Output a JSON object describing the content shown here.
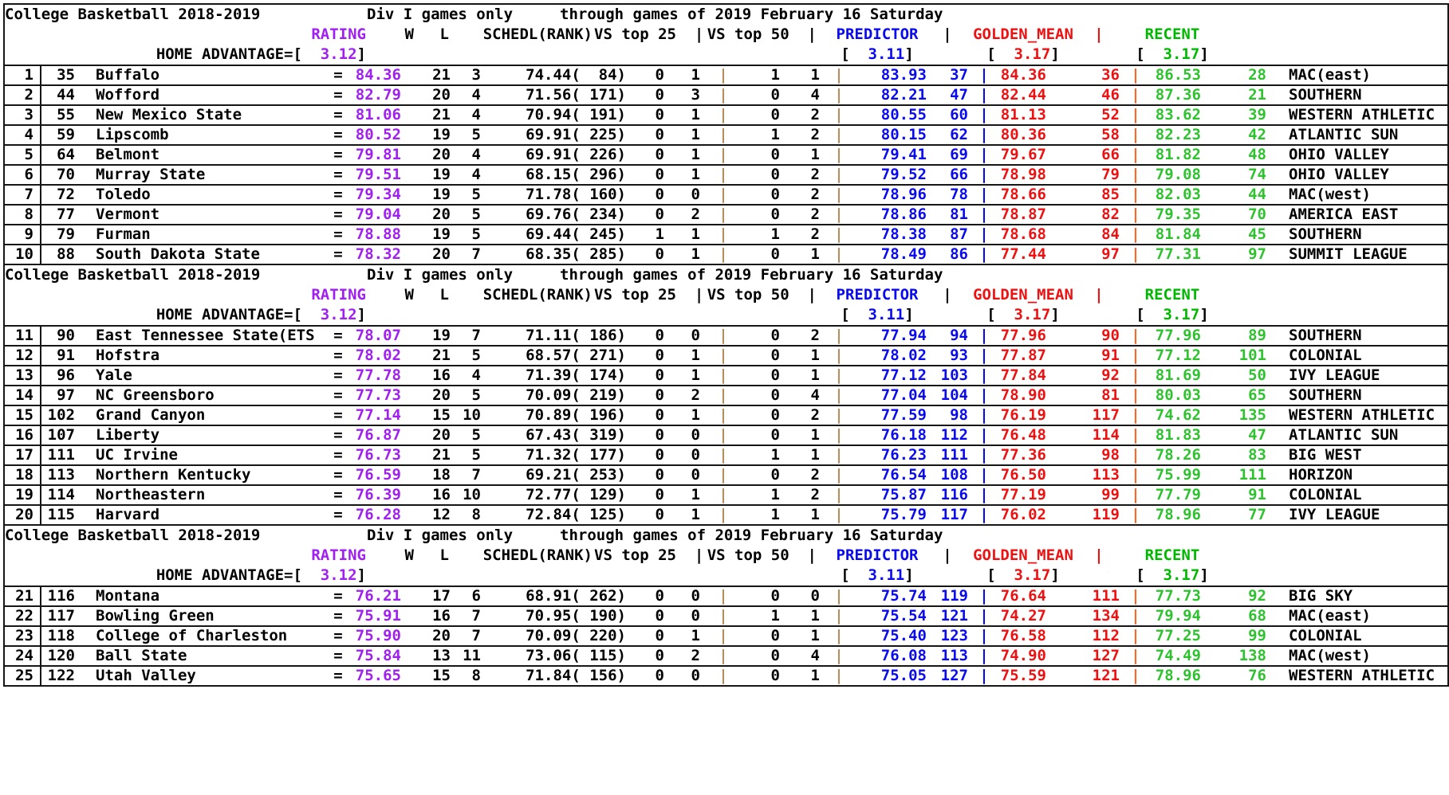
{
  "colors": {
    "rating_purple": "#a020f0",
    "predictor_blue": "#0a0aee",
    "golden_mean_red": "#ee1111",
    "recent_green": "#2fc22f",
    "pipe_tan": "#b38f5f",
    "pipe_orange": "#ff6622"
  },
  "table": {
    "pipe": "|",
    "eq": "=",
    "bracket_open": "[",
    "bracket_close": "]"
  },
  "header": {
    "title_left": "College Basketball 2018-2019",
    "title_mid": "Div I games only",
    "title_right": "through games of 2019 February 16 Saturday",
    "col_rating": "RATING",
    "col_w": "W",
    "col_l": "L",
    "col_schedl": "SCHEDL(RANK)",
    "col_vs25": "VS top 25  |",
    "col_vs50": "VS top 50  |",
    "col_predictor": "PREDICTOR",
    "col_golden": "GOLDEN_MEAN",
    "col_recent": "RECENT",
    "ha_label": "HOME ADVANTAGE=",
    "ha_value": "  3.12",
    "pred_ha": "  3.11",
    "golden_ha": "  3.17",
    "recent_ha": "  3.17"
  },
  "blocks": [
    {
      "from": 0,
      "to": 9
    },
    {
      "from": 10,
      "to": 19
    },
    {
      "from": 20,
      "to": 24
    }
  ],
  "rows": [
    {
      "rank": "1",
      "team_rank": "35",
      "name": "Buffalo",
      "rating": "84.36",
      "w": "21",
      "l": "3",
      "schedl": "74.44(  84)",
      "v25w": "0",
      "v25l": "1",
      "v50w": "1",
      "v50l": "1",
      "pred": "83.93",
      "pred_rank": "37",
      "gm": "84.36",
      "gm_rank": "36",
      "rec": "86.53",
      "rec_rank": "28",
      "conf": "MAC(east)"
    },
    {
      "rank": "2",
      "team_rank": "44",
      "name": "Wofford",
      "rating": "82.79",
      "w": "20",
      "l": "4",
      "schedl": "71.56( 171)",
      "v25w": "0",
      "v25l": "3",
      "v50w": "0",
      "v50l": "4",
      "pred": "82.21",
      "pred_rank": "47",
      "gm": "82.44",
      "gm_rank": "46",
      "rec": "87.36",
      "rec_rank": "21",
      "conf": "SOUTHERN"
    },
    {
      "rank": "3",
      "team_rank": "55",
      "name": "New Mexico State",
      "rating": "81.06",
      "w": "21",
      "l": "4",
      "schedl": "70.94( 191)",
      "v25w": "0",
      "v25l": "1",
      "v50w": "0",
      "v50l": "2",
      "pred": "80.55",
      "pred_rank": "60",
      "gm": "81.13",
      "gm_rank": "52",
      "rec": "83.62",
      "rec_rank": "39",
      "conf": "WESTERN ATHLETIC"
    },
    {
      "rank": "4",
      "team_rank": "59",
      "name": "Lipscomb",
      "rating": "80.52",
      "w": "19",
      "l": "5",
      "schedl": "69.91( 225)",
      "v25w": "0",
      "v25l": "1",
      "v50w": "1",
      "v50l": "2",
      "pred": "80.15",
      "pred_rank": "62",
      "gm": "80.36",
      "gm_rank": "58",
      "rec": "82.23",
      "rec_rank": "42",
      "conf": "ATLANTIC SUN"
    },
    {
      "rank": "5",
      "team_rank": "64",
      "name": "Belmont",
      "rating": "79.81",
      "w": "20",
      "l": "4",
      "schedl": "69.91( 226)",
      "v25w": "0",
      "v25l": "1",
      "v50w": "0",
      "v50l": "1",
      "pred": "79.41",
      "pred_rank": "69",
      "gm": "79.67",
      "gm_rank": "66",
      "rec": "81.82",
      "rec_rank": "48",
      "conf": "OHIO VALLEY"
    },
    {
      "rank": "6",
      "team_rank": "70",
      "name": "Murray State",
      "rating": "79.51",
      "w": "19",
      "l": "4",
      "schedl": "68.15( 296)",
      "v25w": "0",
      "v25l": "1",
      "v50w": "0",
      "v50l": "2",
      "pred": "79.52",
      "pred_rank": "66",
      "gm": "78.98",
      "gm_rank": "79",
      "rec": "79.08",
      "rec_rank": "74",
      "conf": "OHIO VALLEY"
    },
    {
      "rank": "7",
      "team_rank": "72",
      "name": "Toledo",
      "rating": "79.34",
      "w": "19",
      "l": "5",
      "schedl": "71.78( 160)",
      "v25w": "0",
      "v25l": "0",
      "v50w": "0",
      "v50l": "2",
      "pred": "78.96",
      "pred_rank": "78",
      "gm": "78.66",
      "gm_rank": "85",
      "rec": "82.03",
      "rec_rank": "44",
      "conf": "MAC(west)"
    },
    {
      "rank": "8",
      "team_rank": "77",
      "name": "Vermont",
      "rating": "79.04",
      "w": "20",
      "l": "5",
      "schedl": "69.76( 234)",
      "v25w": "0",
      "v25l": "2",
      "v50w": "0",
      "v50l": "2",
      "pred": "78.86",
      "pred_rank": "81",
      "gm": "78.87",
      "gm_rank": "82",
      "rec": "79.35",
      "rec_rank": "70",
      "conf": "AMERICA EAST"
    },
    {
      "rank": "9",
      "team_rank": "79",
      "name": "Furman",
      "rating": "78.88",
      "w": "19",
      "l": "5",
      "schedl": "69.44( 245)",
      "v25w": "1",
      "v25l": "1",
      "v50w": "1",
      "v50l": "2",
      "pred": "78.38",
      "pred_rank": "87",
      "gm": "78.68",
      "gm_rank": "84",
      "rec": "81.84",
      "rec_rank": "45",
      "conf": "SOUTHERN"
    },
    {
      "rank": "10",
      "team_rank": "88",
      "name": "South Dakota State",
      "rating": "78.32",
      "w": "20",
      "l": "7",
      "schedl": "68.35( 285)",
      "v25w": "0",
      "v25l": "1",
      "v50w": "0",
      "v50l": "1",
      "pred": "78.49",
      "pred_rank": "86",
      "gm": "77.44",
      "gm_rank": "97",
      "rec": "77.31",
      "rec_rank": "97",
      "conf": "SUMMIT LEAGUE"
    },
    {
      "rank": "11",
      "team_rank": "90",
      "name": "East Tennessee State(ETS",
      "rating": "78.07",
      "w": "19",
      "l": "7",
      "schedl": "71.11( 186)",
      "v25w": "0",
      "v25l": "0",
      "v50w": "0",
      "v50l": "2",
      "pred": "77.94",
      "pred_rank": "94",
      "gm": "77.96",
      "gm_rank": "90",
      "rec": "77.96",
      "rec_rank": "89",
      "conf": "SOUTHERN"
    },
    {
      "rank": "12",
      "team_rank": "91",
      "name": "Hofstra",
      "rating": "78.02",
      "w": "21",
      "l": "5",
      "schedl": "68.57( 271)",
      "v25w": "0",
      "v25l": "1",
      "v50w": "0",
      "v50l": "1",
      "pred": "78.02",
      "pred_rank": "93",
      "gm": "77.87",
      "gm_rank": "91",
      "rec": "77.12",
      "rec_rank": "101",
      "conf": "COLONIAL"
    },
    {
      "rank": "13",
      "team_rank": "96",
      "name": "Yale",
      "rating": "77.78",
      "w": "16",
      "l": "4",
      "schedl": "71.39( 174)",
      "v25w": "0",
      "v25l": "1",
      "v50w": "0",
      "v50l": "1",
      "pred": "77.12",
      "pred_rank": "103",
      "gm": "77.84",
      "gm_rank": "92",
      "rec": "81.69",
      "rec_rank": "50",
      "conf": "IVY LEAGUE"
    },
    {
      "rank": "14",
      "team_rank": "97",
      "name": "NC Greensboro",
      "rating": "77.73",
      "w": "20",
      "l": "5",
      "schedl": "70.09( 219)",
      "v25w": "0",
      "v25l": "2",
      "v50w": "0",
      "v50l": "4",
      "pred": "77.04",
      "pred_rank": "104",
      "gm": "78.90",
      "gm_rank": "81",
      "rec": "80.03",
      "rec_rank": "65",
      "conf": "SOUTHERN"
    },
    {
      "rank": "15",
      "team_rank": "102",
      "name": "Grand Canyon",
      "rating": "77.14",
      "w": "15",
      "l": "10",
      "schedl": "70.89( 196)",
      "v25w": "0",
      "v25l": "1",
      "v50w": "0",
      "v50l": "2",
      "pred": "77.59",
      "pred_rank": "98",
      "gm": "76.19",
      "gm_rank": "117",
      "rec": "74.62",
      "rec_rank": "135",
      "conf": "WESTERN ATHLETIC"
    },
    {
      "rank": "16",
      "team_rank": "107",
      "name": "Liberty",
      "rating": "76.87",
      "w": "20",
      "l": "5",
      "schedl": "67.43( 319)",
      "v25w": "0",
      "v25l": "0",
      "v50w": "0",
      "v50l": "1",
      "pred": "76.18",
      "pred_rank": "112",
      "gm": "76.48",
      "gm_rank": "114",
      "rec": "81.83",
      "rec_rank": "47",
      "conf": "ATLANTIC SUN"
    },
    {
      "rank": "17",
      "team_rank": "111",
      "name": "UC Irvine",
      "rating": "76.73",
      "w": "21",
      "l": "5",
      "schedl": "71.32( 177)",
      "v25w": "0",
      "v25l": "0",
      "v50w": "1",
      "v50l": "1",
      "pred": "76.23",
      "pred_rank": "111",
      "gm": "77.36",
      "gm_rank": "98",
      "rec": "78.26",
      "rec_rank": "83",
      "conf": "BIG WEST"
    },
    {
      "rank": "18",
      "team_rank": "113",
      "name": "Northern Kentucky",
      "rating": "76.59",
      "w": "18",
      "l": "7",
      "schedl": "69.21( 253)",
      "v25w": "0",
      "v25l": "0",
      "v50w": "0",
      "v50l": "2",
      "pred": "76.54",
      "pred_rank": "108",
      "gm": "76.50",
      "gm_rank": "113",
      "rec": "75.99",
      "rec_rank": "111",
      "conf": "HORIZON"
    },
    {
      "rank": "19",
      "team_rank": "114",
      "name": "Northeastern",
      "rating": "76.39",
      "w": "16",
      "l": "10",
      "schedl": "72.77( 129)",
      "v25w": "0",
      "v25l": "1",
      "v50w": "1",
      "v50l": "2",
      "pred": "75.87",
      "pred_rank": "116",
      "gm": "77.19",
      "gm_rank": "99",
      "rec": "77.79",
      "rec_rank": "91",
      "conf": "COLONIAL"
    },
    {
      "rank": "20",
      "team_rank": "115",
      "name": "Harvard",
      "rating": "76.28",
      "w": "12",
      "l": "8",
      "schedl": "72.84( 125)",
      "v25w": "0",
      "v25l": "1",
      "v50w": "1",
      "v50l": "1",
      "pred": "75.79",
      "pred_rank": "117",
      "gm": "76.02",
      "gm_rank": "119",
      "rec": "78.96",
      "rec_rank": "77",
      "conf": "IVY LEAGUE"
    },
    {
      "rank": "21",
      "team_rank": "116",
      "name": "Montana",
      "rating": "76.21",
      "w": "17",
      "l": "6",
      "schedl": "68.91( 262)",
      "v25w": "0",
      "v25l": "0",
      "v50w": "0",
      "v50l": "0",
      "pred": "75.74",
      "pred_rank": "119",
      "gm": "76.64",
      "gm_rank": "111",
      "rec": "77.73",
      "rec_rank": "92",
      "conf": "BIG SKY"
    },
    {
      "rank": "22",
      "team_rank": "117",
      "name": "Bowling Green",
      "rating": "75.91",
      "w": "16",
      "l": "7",
      "schedl": "70.95( 190)",
      "v25w": "0",
      "v25l": "0",
      "v50w": "1",
      "v50l": "1",
      "pred": "75.54",
      "pred_rank": "121",
      "gm": "74.27",
      "gm_rank": "134",
      "rec": "79.94",
      "rec_rank": "68",
      "conf": "MAC(east)"
    },
    {
      "rank": "23",
      "team_rank": "118",
      "name": "College of Charleston",
      "rating": "75.90",
      "w": "20",
      "l": "7",
      "schedl": "70.09( 220)",
      "v25w": "0",
      "v25l": "1",
      "v50w": "0",
      "v50l": "1",
      "pred": "75.40",
      "pred_rank": "123",
      "gm": "76.58",
      "gm_rank": "112",
      "rec": "77.25",
      "rec_rank": "99",
      "conf": "COLONIAL"
    },
    {
      "rank": "24",
      "team_rank": "120",
      "name": "Ball State",
      "rating": "75.84",
      "w": "13",
      "l": "11",
      "schedl": "73.06( 115)",
      "v25w": "0",
      "v25l": "2",
      "v50w": "0",
      "v50l": "4",
      "pred": "76.08",
      "pred_rank": "113",
      "gm": "74.90",
      "gm_rank": "127",
      "rec": "74.49",
      "rec_rank": "138",
      "conf": "MAC(west)"
    },
    {
      "rank": "25",
      "team_rank": "122",
      "name": "Utah Valley",
      "rating": "75.65",
      "w": "15",
      "l": "8",
      "schedl": "71.84( 156)",
      "v25w": "0",
      "v25l": "0",
      "v50w": "0",
      "v50l": "1",
      "pred": "75.05",
      "pred_rank": "127",
      "gm": "75.59",
      "gm_rank": "121",
      "rec": "78.96",
      "rec_rank": "76",
      "conf": "WESTERN ATHLETIC"
    }
  ]
}
